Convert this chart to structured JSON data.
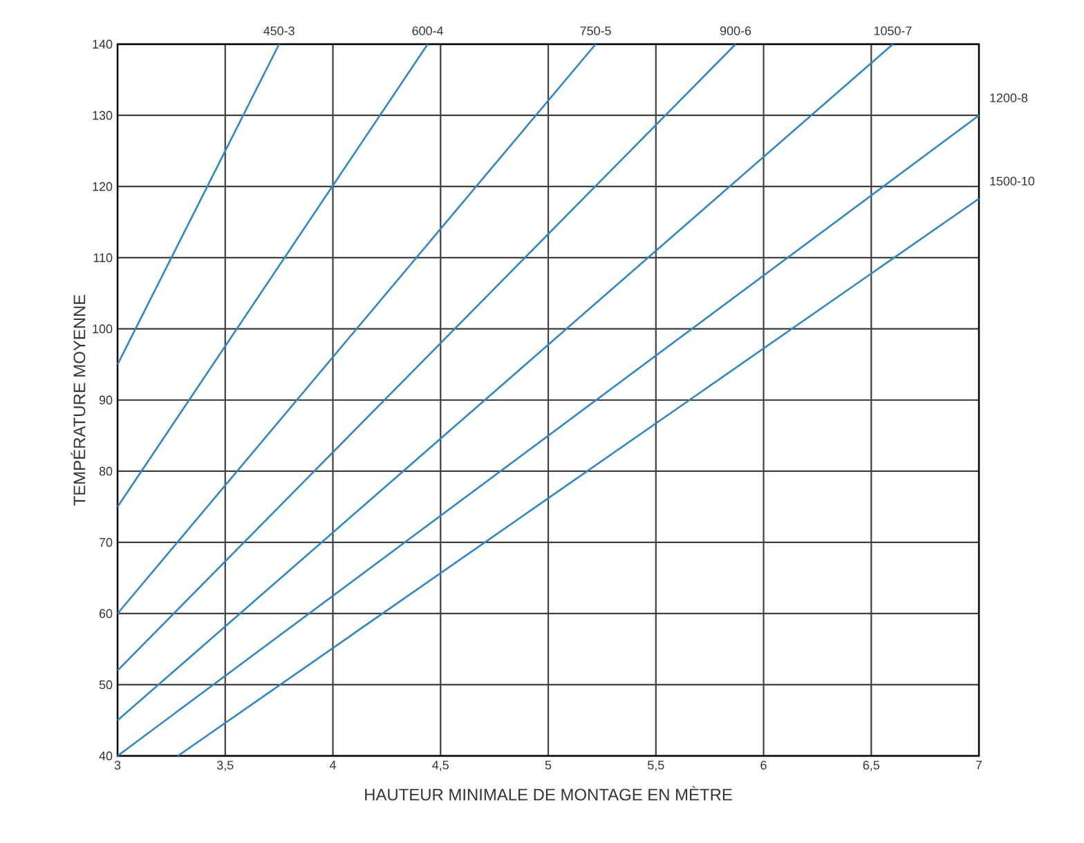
{
  "chart_data": {
    "type": "line",
    "xlabel": "HAUTEUR MINIMALE DE MONTAGE EN MÈTRE",
    "ylabel": "TEMPÉRATURE MOYENNE",
    "xlim": [
      3,
      7
    ],
    "ylim": [
      40,
      140
    ],
    "xticks": [
      3,
      {
        "value": 3.5,
        "label": "3,5"
      },
      4,
      {
        "value": 4.5,
        "label": "4,5"
      },
      5,
      {
        "value": 5.5,
        "label": "5,5"
      },
      6,
      {
        "value": 6.5,
        "label": "6,5"
      },
      7
    ],
    "yticks": [
      40,
      50,
      60,
      70,
      80,
      90,
      100,
      110,
      120,
      130,
      140
    ],
    "grid": true,
    "legend": false,
    "marker": "none",
    "line_style": "solid",
    "series": [
      {
        "name": "450-3",
        "color": "#2e86c8",
        "x": [
          3,
          3.75
        ],
        "values": [
          95,
          140
        ]
      },
      {
        "name": "600-4",
        "color": "#2e86c8",
        "x": [
          3,
          4.44
        ],
        "values": [
          75,
          140
        ]
      },
      {
        "name": "750-5",
        "color": "#2e86c8",
        "x": [
          3,
          5.22
        ],
        "values": [
          60,
          140
        ]
      },
      {
        "name": "900-6",
        "color": "#2e86c8",
        "x": [
          3,
          5.87
        ],
        "values": [
          52,
          140
        ]
      },
      {
        "name": "1050-7",
        "color": "#2e86c8",
        "x": [
          3,
          6.6
        ],
        "values": [
          45,
          140
        ]
      },
      {
        "name": "1200-8",
        "color": "#2e86c8",
        "x": [
          3,
          7
        ],
        "values": [
          40,
          130
        ]
      },
      {
        "name": "1500-10",
        "color": "#2e86c8",
        "x": [
          3.28,
          7
        ],
        "values": [
          40,
          118.3
        ]
      }
    ]
  }
}
